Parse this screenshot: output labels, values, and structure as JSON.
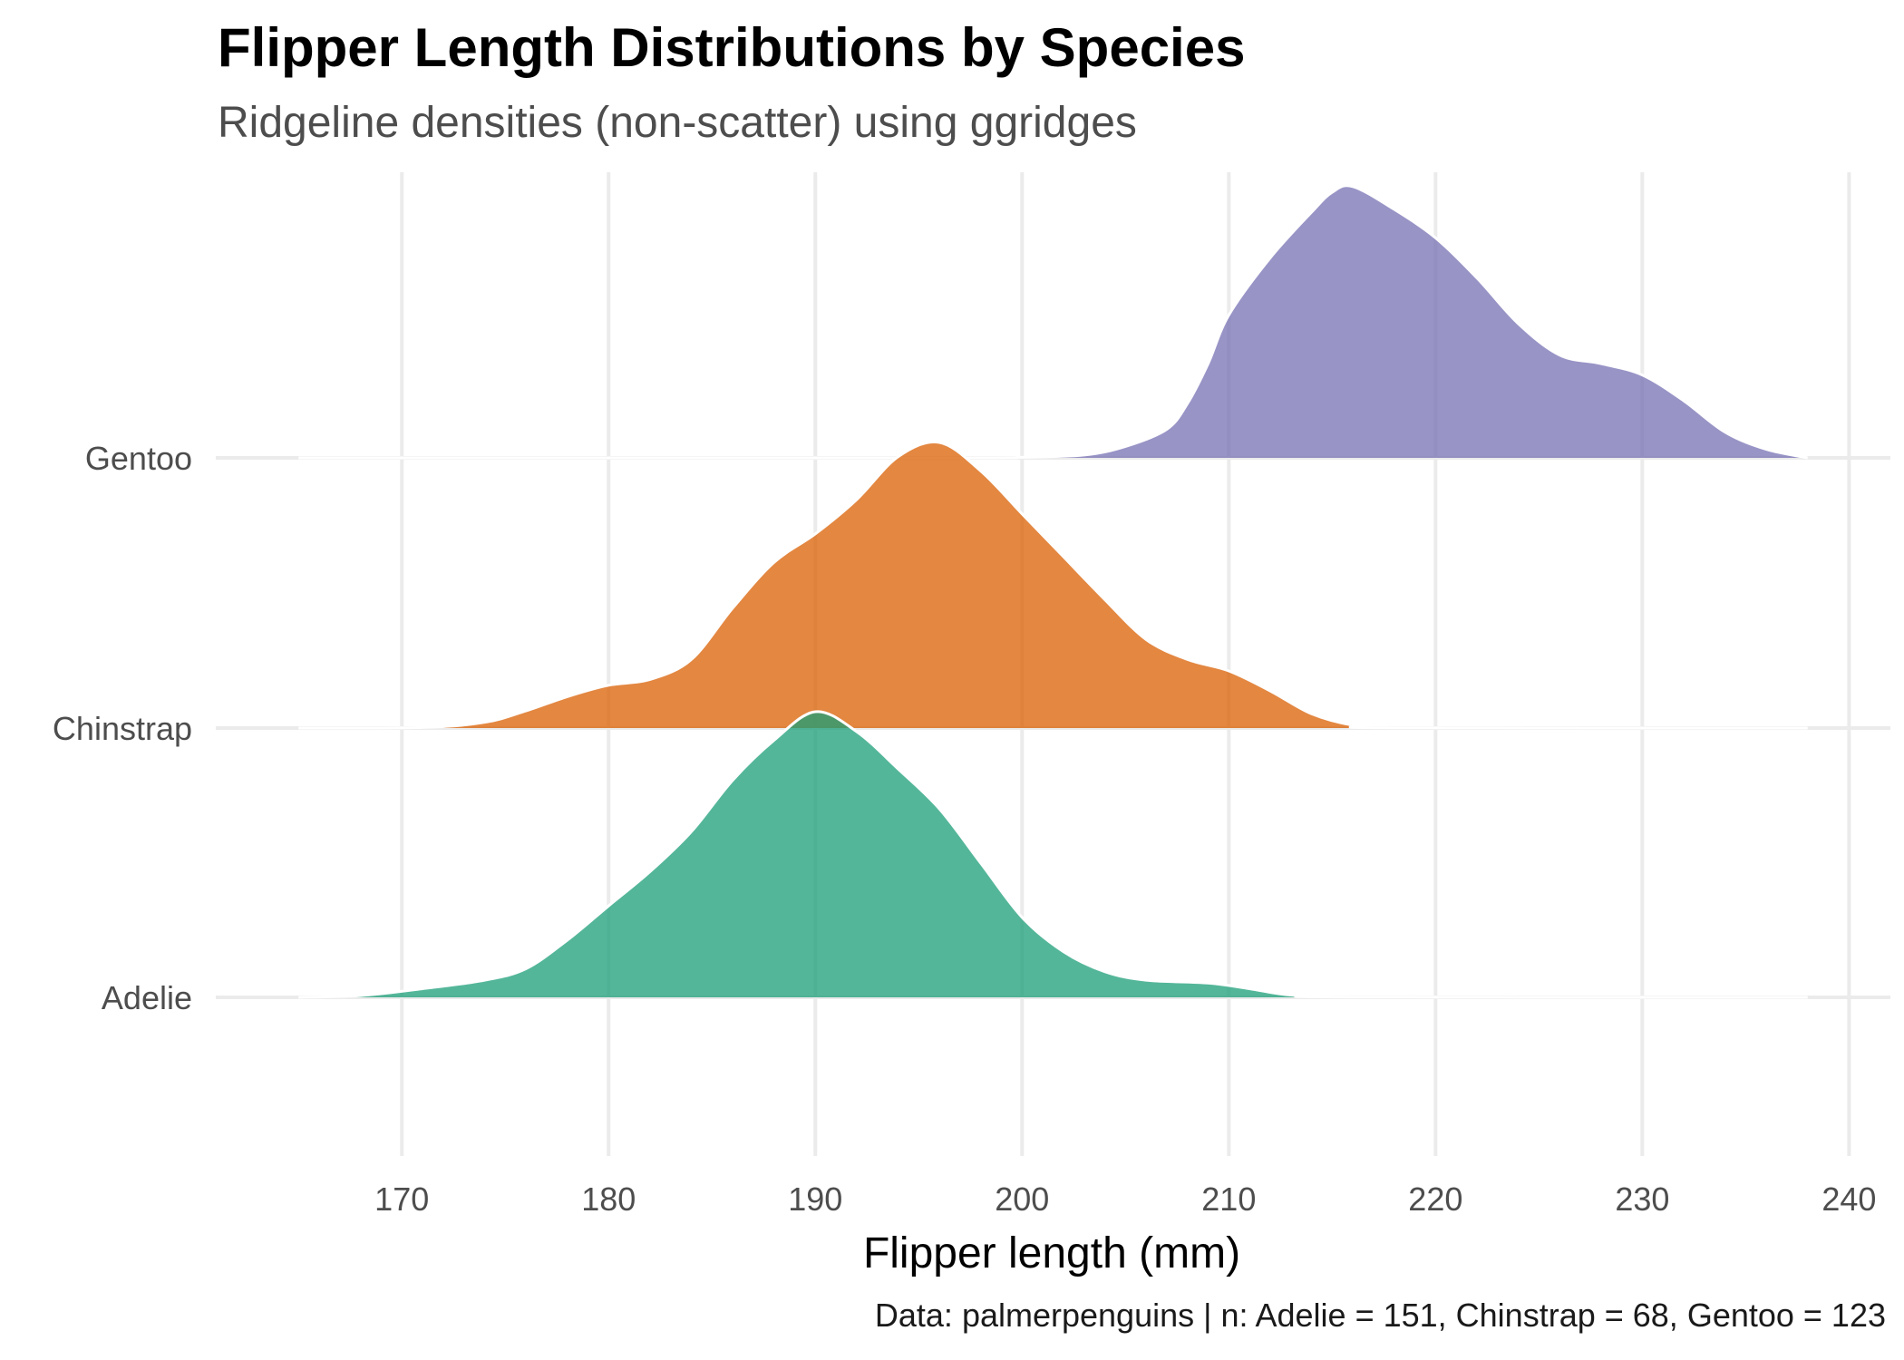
{
  "chart_data": {
    "type": "ridgeline",
    "title": "Flipper Length Distributions by Species",
    "subtitle": "Ridgeline densities (non-scatter) using ggridges",
    "caption": "Data: palmerpenguins | n: Adelie = 151, Chinstrap = 68, Gentoo = 123",
    "xlabel": "Flipper length (mm)",
    "ylabel": "",
    "xlim": [
      161,
      242
    ],
    "x_ticks": [
      170,
      180,
      190,
      200,
      210,
      220,
      230,
      240
    ],
    "grid": true,
    "legend": "none",
    "series": [
      {
        "name": "Adelie",
        "color": "#1B9E77",
        "points": [
          [
            165,
            0
          ],
          [
            168,
            0.006
          ],
          [
            171,
            0.03
          ],
          [
            174,
            0.06
          ],
          [
            176,
            0.1
          ],
          [
            178,
            0.2
          ],
          [
            180,
            0.32
          ],
          [
            182,
            0.44
          ],
          [
            184,
            0.58
          ],
          [
            186,
            0.76
          ],
          [
            188,
            0.9
          ],
          [
            190,
            1.0
          ],
          [
            192,
            0.93
          ],
          [
            194,
            0.8
          ],
          [
            196,
            0.66
          ],
          [
            198,
            0.47
          ],
          [
            200,
            0.28
          ],
          [
            202,
            0.16
          ],
          [
            204,
            0.09
          ],
          [
            206,
            0.06
          ],
          [
            209,
            0.05
          ],
          [
            211,
            0.03
          ],
          [
            213,
            0.008
          ],
          [
            216,
            0.001
          ],
          [
            238,
            0
          ]
        ]
      },
      {
        "name": "Chinstrap",
        "color": "#D95F02",
        "points": [
          [
            165,
            0
          ],
          [
            171,
            0.002
          ],
          [
            174,
            0.02
          ],
          [
            176,
            0.06
          ],
          [
            178,
            0.11
          ],
          [
            180,
            0.15
          ],
          [
            182,
            0.17
          ],
          [
            184,
            0.24
          ],
          [
            186,
            0.42
          ],
          [
            188,
            0.58
          ],
          [
            190,
            0.68
          ],
          [
            192,
            0.8
          ],
          [
            194,
            0.95
          ],
          [
            196,
            1.0
          ],
          [
            198,
            0.9
          ],
          [
            200,
            0.75
          ],
          [
            202,
            0.6
          ],
          [
            204,
            0.45
          ],
          [
            206,
            0.31
          ],
          [
            208,
            0.24
          ],
          [
            210,
            0.2
          ],
          [
            212,
            0.13
          ],
          [
            214,
            0.05
          ],
          [
            216,
            0.01
          ],
          [
            218,
            0.001
          ],
          [
            238,
            0
          ]
        ]
      },
      {
        "name": "Gentoo",
        "color": "#7570B3",
        "points": [
          [
            165,
            0
          ],
          [
            196,
            0
          ],
          [
            200,
            0.002
          ],
          [
            203,
            0.01
          ],
          [
            205,
            0.04
          ],
          [
            207,
            0.1
          ],
          [
            208,
            0.19
          ],
          [
            209,
            0.33
          ],
          [
            210,
            0.5
          ],
          [
            212,
            0.7
          ],
          [
            214,
            0.86
          ],
          [
            215,
            0.93
          ],
          [
            216,
            0.95
          ],
          [
            218,
            0.87
          ],
          [
            220,
            0.77
          ],
          [
            222,
            0.63
          ],
          [
            224,
            0.47
          ],
          [
            226,
            0.36
          ],
          [
            228,
            0.33
          ],
          [
            230,
            0.29
          ],
          [
            232,
            0.2
          ],
          [
            234,
            0.09
          ],
          [
            236,
            0.03
          ],
          [
            238,
            0
          ]
        ]
      }
    ]
  }
}
